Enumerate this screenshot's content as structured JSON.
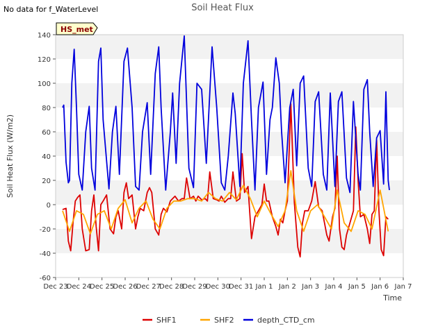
{
  "notice": "No data for f_WaterLevel",
  "site_badge": "HS_met",
  "chart_data": {
    "type": "line",
    "title": "Soil Heat Flux",
    "xlabel": "Time",
    "ylabel": "Soil Heat Flux (W/m2)",
    "ylim": [
      -60,
      140
    ],
    "yticks": [
      -60,
      -40,
      -20,
      0,
      20,
      40,
      60,
      80,
      100,
      120,
      140
    ],
    "xlim": [
      0,
      15
    ],
    "xticks": [
      0,
      1,
      2,
      3,
      4,
      5,
      6,
      7,
      8,
      9,
      10,
      11,
      12,
      13,
      14,
      15
    ],
    "xtick_labels": [
      "Dec 23",
      "Dec 24",
      "Dec 25",
      "Dec 26",
      "Dec 27",
      "Dec 28",
      "Dec 29",
      "Dec 30",
      "Dec 31",
      "Jan 1",
      "Jan 2",
      "Jan 3",
      "Jan 4",
      "Jan 5",
      "Jan 6",
      "Jan 7"
    ],
    "x_unit": "days after Dec 23 00:00",
    "grid": "horizontal bands",
    "legend_position": "bottom-center",
    "series": [
      {
        "name": "SHF1",
        "color": "#dd0000",
        "x": [
          0.3,
          0.45,
          0.55,
          0.65,
          0.75,
          0.85,
          0.95,
          1.05,
          1.15,
          1.3,
          1.45,
          1.55,
          1.65,
          1.75,
          1.85,
          1.95,
          2.05,
          2.2,
          2.35,
          2.5,
          2.6,
          2.7,
          2.85,
          2.95,
          3.05,
          3.15,
          3.3,
          3.45,
          3.55,
          3.65,
          3.8,
          3.95,
          4.05,
          4.15,
          4.3,
          4.45,
          4.55,
          4.65,
          4.8,
          4.95,
          5.05,
          5.15,
          5.3,
          5.45,
          5.55,
          5.65,
          5.8,
          5.95,
          6.05,
          6.15,
          6.3,
          6.45,
          6.55,
          6.65,
          6.8,
          6.95,
          7.05,
          7.15,
          7.3,
          7.45,
          7.55,
          7.65,
          7.8,
          7.95,
          8.05,
          8.15,
          8.3,
          8.45,
          8.6,
          8.75,
          8.9,
          9.0,
          9.1,
          9.2,
          9.35,
          9.5,
          9.6,
          9.7,
          9.8,
          9.9,
          10.0,
          10.15,
          10.3,
          10.45,
          10.55,
          10.65,
          10.75,
          10.9,
          11.05,
          11.2,
          11.35,
          11.5,
          11.6,
          11.7,
          11.8,
          11.95,
          12.05,
          12.15,
          12.25,
          12.35,
          12.45,
          12.55,
          12.7,
          12.85,
          12.95,
          13.05,
          13.15,
          13.3,
          13.45,
          13.55,
          13.65,
          13.75,
          13.85,
          13.95,
          14.05,
          14.15,
          14.25,
          14.35
        ],
        "values": [
          -4,
          -3,
          -30,
          -38,
          -15,
          3,
          6,
          8,
          -20,
          -38,
          -37,
          -5,
          8,
          -18,
          -38,
          0,
          3,
          8,
          -20,
          -24,
          -10,
          -5,
          -20,
          10,
          18,
          5,
          8,
          -20,
          -10,
          -3,
          -5,
          10,
          14,
          10,
          -20,
          -25,
          -8,
          -3,
          -6,
          3,
          5,
          7,
          3,
          5,
          5,
          22,
          5,
          7,
          3,
          7,
          4,
          5,
          3,
          27,
          5,
          4,
          3,
          7,
          2,
          5,
          5,
          27,
          3,
          5,
          42,
          10,
          15,
          -28,
          -10,
          -5,
          0,
          17,
          3,
          3,
          -10,
          -18,
          -25,
          -12,
          -15,
          -5,
          3,
          83,
          2,
          -35,
          -43,
          -15,
          -5,
          -5,
          3,
          19,
          -2,
          -5,
          -15,
          -25,
          -30,
          -10,
          -3,
          40,
          -20,
          -35,
          -37,
          -25,
          -15,
          -5,
          64,
          20,
          -10,
          -8,
          -20,
          -32,
          -8,
          -5,
          53,
          -5,
          -37,
          -42,
          -10,
          -12
        ]
      },
      {
        "name": "SHF2",
        "color": "#ffa500",
        "x": [
          0.3,
          0.6,
          0.9,
          1.2,
          1.5,
          1.8,
          2.1,
          2.4,
          2.7,
          3.0,
          3.3,
          3.6,
          3.9,
          4.2,
          4.5,
          4.8,
          5.1,
          5.4,
          5.7,
          6.0,
          6.3,
          6.6,
          6.9,
          7.2,
          7.5,
          7.8,
          8.1,
          8.4,
          8.7,
          9.0,
          9.3,
          9.6,
          9.9,
          10.15,
          10.4,
          10.7,
          11.0,
          11.3,
          11.6,
          11.9,
          12.15,
          12.45,
          12.75,
          13.05,
          13.35,
          13.65,
          14.0,
          14.35
        ],
        "values": [
          -5,
          -22,
          -5,
          -8,
          -24,
          -8,
          -5,
          -20,
          -3,
          4,
          -15,
          -3,
          3,
          -12,
          -20,
          -3,
          3,
          3,
          5,
          5,
          3,
          10,
          5,
          3,
          10,
          4,
          16,
          5,
          -10,
          3,
          -8,
          -18,
          -5,
          28,
          -5,
          -22,
          -5,
          0,
          -10,
          -20,
          12,
          -15,
          -22,
          -5,
          -8,
          -20,
          12,
          -22
        ]
      },
      {
        "name": "depth_CTD_cm",
        "color": "#0000dd",
        "x": [
          0.3,
          0.35,
          0.45,
          0.55,
          0.6,
          0.7,
          0.8,
          0.9,
          1.0,
          1.15,
          1.3,
          1.45,
          1.55,
          1.7,
          1.85,
          1.95,
          2.05,
          2.3,
          2.45,
          2.6,
          2.75,
          2.95,
          3.1,
          3.3,
          3.45,
          3.6,
          3.75,
          3.95,
          4.1,
          4.3,
          4.45,
          4.55,
          4.75,
          4.95,
          5.05,
          5.2,
          5.35,
          5.55,
          5.75,
          5.95,
          6.1,
          6.3,
          6.5,
          6.75,
          6.95,
          7.15,
          7.3,
          7.45,
          7.65,
          7.75,
          7.95,
          8.1,
          8.3,
          8.45,
          8.6,
          8.75,
          8.95,
          9.1,
          9.25,
          9.35,
          9.5,
          9.65,
          9.75,
          9.9,
          10.1,
          10.25,
          10.4,
          10.55,
          10.7,
          10.9,
          11.05,
          11.2,
          11.35,
          11.55,
          11.7,
          11.85,
          12.05,
          12.2,
          12.35,
          12.55,
          12.7,
          12.85,
          13.05,
          13.15,
          13.3,
          13.45,
          13.55,
          13.7,
          13.85,
          14.0,
          14.15,
          14.25,
          14.35,
          14.4
        ],
        "values": [
          80,
          82,
          35,
          18,
          20,
          100,
          128,
          80,
          25,
          12,
          60,
          81,
          30,
          12,
          118,
          129,
          70,
          13,
          60,
          81,
          25,
          118,
          129,
          80,
          15,
          12,
          60,
          84,
          25,
          108,
          130,
          80,
          12,
          60,
          92,
          34,
          100,
          139,
          30,
          14,
          100,
          95,
          34,
          130,
          80,
          18,
          12,
          40,
          92,
          75,
          15,
          100,
          135,
          70,
          12,
          80,
          101,
          25,
          70,
          80,
          121,
          100,
          60,
          18,
          80,
          95,
          32,
          100,
          106,
          30,
          15,
          85,
          93,
          25,
          12,
          92,
          15,
          85,
          93,
          22,
          10,
          85,
          25,
          12,
          95,
          103,
          60,
          15,
          55,
          61,
          17,
          93,
          20,
          12
        ]
      }
    ]
  }
}
